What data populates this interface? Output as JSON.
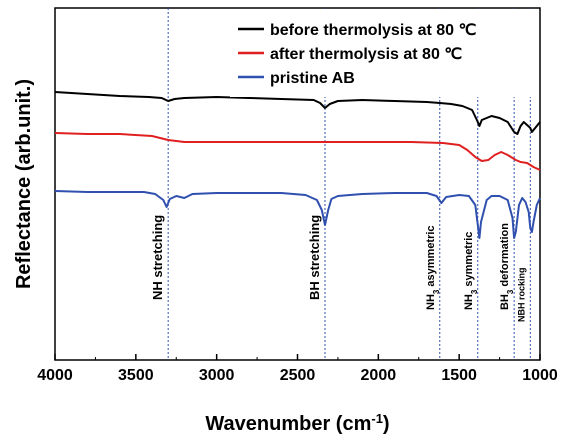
{
  "chart_data": {
    "type": "line",
    "xlabel_main": "Wavenumber (cm",
    "xlabel_sup": "-1",
    "xlabel_end": ")",
    "ylabel": "Reflectance (arb.unit.)",
    "xlim": [
      4000,
      1000
    ],
    "x_reversed": true,
    "x_ticks": [
      4000,
      3500,
      3000,
      2500,
      2000,
      1500,
      1000
    ],
    "y_ticks_shown": false,
    "legend_position": "top-right",
    "series": [
      {
        "name": "before thermolysis at 80 ℃",
        "color": "#000000",
        "points": [
          [
            4000,
            92
          ],
          [
            3800,
            94
          ],
          [
            3600,
            96
          ],
          [
            3420,
            97
          ],
          [
            3340,
            98
          ],
          [
            3300,
            101
          ],
          [
            3260,
            99
          ],
          [
            3200,
            98
          ],
          [
            3000,
            97
          ],
          [
            2800,
            98
          ],
          [
            2600,
            99
          ],
          [
            2400,
            100
          ],
          [
            2360,
            103
          ],
          [
            2330,
            108
          ],
          [
            2300,
            104
          ],
          [
            2250,
            101
          ],
          [
            2100,
            100
          ],
          [
            1900,
            101
          ],
          [
            1700,
            102
          ],
          [
            1620,
            103
          ],
          [
            1550,
            104
          ],
          [
            1480,
            106
          ],
          [
            1420,
            110
          ],
          [
            1390,
            120
          ],
          [
            1375,
            126
          ],
          [
            1360,
            120
          ],
          [
            1300,
            116
          ],
          [
            1250,
            118
          ],
          [
            1200,
            122
          ],
          [
            1160,
            132
          ],
          [
            1140,
            134
          ],
          [
            1120,
            126
          ],
          [
            1100,
            122
          ],
          [
            1060,
            128
          ],
          [
            1050,
            132
          ],
          [
            1040,
            130
          ],
          [
            1020,
            126
          ],
          [
            1000,
            122
          ]
        ]
      },
      {
        "name": "after thermolysis at 80 ℃",
        "color": "#e02020",
        "points": [
          [
            4000,
            133
          ],
          [
            3800,
            134
          ],
          [
            3600,
            134
          ],
          [
            3400,
            136
          ],
          [
            3300,
            140
          ],
          [
            3200,
            142
          ],
          [
            3000,
            142
          ],
          [
            2800,
            142
          ],
          [
            2600,
            142
          ],
          [
            2400,
            142
          ],
          [
            2200,
            142
          ],
          [
            2000,
            142
          ],
          [
            1800,
            142
          ],
          [
            1600,
            143
          ],
          [
            1500,
            145
          ],
          [
            1450,
            150
          ],
          [
            1400,
            157
          ],
          [
            1360,
            161
          ],
          [
            1320,
            160
          ],
          [
            1280,
            155
          ],
          [
            1240,
            152
          ],
          [
            1200,
            155
          ],
          [
            1150,
            160
          ],
          [
            1120,
            162
          ],
          [
            1080,
            163
          ],
          [
            1040,
            167
          ],
          [
            1000,
            170
          ]
        ]
      },
      {
        "name": "pristine AB",
        "color": "#3050b0",
        "points": [
          [
            4000,
            191
          ],
          [
            3800,
            192
          ],
          [
            3600,
            192
          ],
          [
            3450,
            192
          ],
          [
            3380,
            194
          ],
          [
            3330,
            200
          ],
          [
            3310,
            207
          ],
          [
            3290,
            199
          ],
          [
            3250,
            196
          ],
          [
            3200,
            198
          ],
          [
            3150,
            194
          ],
          [
            3000,
            193
          ],
          [
            2800,
            193
          ],
          [
            2600,
            193
          ],
          [
            2450,
            195
          ],
          [
            2380,
            200
          ],
          [
            2350,
            210
          ],
          [
            2330,
            225
          ],
          [
            2310,
            210
          ],
          [
            2290,
            199
          ],
          [
            2250,
            196
          ],
          [
            2100,
            194
          ],
          [
            1900,
            193
          ],
          [
            1700,
            193
          ],
          [
            1640,
            196
          ],
          [
            1610,
            203
          ],
          [
            1580,
            197
          ],
          [
            1500,
            195
          ],
          [
            1440,
            196
          ],
          [
            1400,
            205
          ],
          [
            1385,
            225
          ],
          [
            1375,
            238
          ],
          [
            1365,
            222
          ],
          [
            1330,
            200
          ],
          [
            1300,
            196
          ],
          [
            1250,
            196
          ],
          [
            1200,
            200
          ],
          [
            1170,
            218
          ],
          [
            1160,
            238
          ],
          [
            1150,
            232
          ],
          [
            1130,
            205
          ],
          [
            1110,
            198
          ],
          [
            1090,
            202
          ],
          [
            1070,
            212
          ],
          [
            1060,
            228
          ],
          [
            1050,
            232
          ],
          [
            1040,
            222
          ],
          [
            1020,
            205
          ],
          [
            1000,
            198
          ]
        ]
      }
    ],
    "annotations": [
      {
        "x": 3300,
        "text": "NH stretching",
        "style": "annot"
      },
      {
        "x": 2330,
        "text": "BH stretching",
        "style": "annot"
      },
      {
        "x": 1620,
        "text": "NH",
        "sub": "3",
        "rest": " asymmetric",
        "style": "annot-small"
      },
      {
        "x": 1385,
        "text": "NH",
        "sub": "3",
        "rest": " symmetric",
        "style": "annot-small"
      },
      {
        "x": 1160,
        "text": "BH",
        "sub": "3",
        "rest": " deformation",
        "style": "annot-small"
      },
      {
        "x": 1060,
        "text": "NBH rocking",
        "style": "annot-tiny"
      }
    ]
  }
}
